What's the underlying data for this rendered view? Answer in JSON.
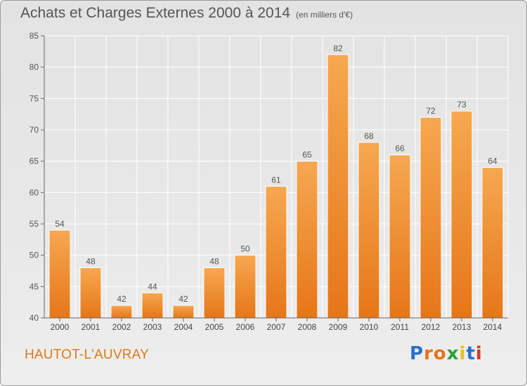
{
  "title": "Achats et Charges Externes 2000 à 2014",
  "subtitle": "(en milliers d'€)",
  "city": "HAUTOT-L'AUVRAY",
  "logo": {
    "letters": [
      "P",
      "r",
      "o",
      "x",
      "i",
      "t",
      "i"
    ],
    "colors": [
      "#2a6fc9",
      "#e8731a",
      "#e8731a",
      "#2e9e3a",
      "#e6c21a",
      "#2a6fc9",
      "#d43a2a"
    ]
  },
  "colors": {
    "bar": "#f08c28",
    "bar_light": "#f6a850",
    "axis": "#555555",
    "grid": "#ffffff",
    "city": "#e07818"
  },
  "chart_data": {
    "type": "bar",
    "categories": [
      "2000",
      "2001",
      "2002",
      "2003",
      "2004",
      "2005",
      "2006",
      "2007",
      "2008",
      "2009",
      "2010",
      "2011",
      "2012",
      "2013",
      "2014"
    ],
    "values": [
      54,
      48,
      42,
      44,
      42,
      48,
      50,
      61,
      65,
      82,
      68,
      66,
      72,
      73,
      64
    ],
    "ylim": [
      40,
      85
    ],
    "yticks": [
      40,
      45,
      50,
      55,
      60,
      65,
      70,
      75,
      80,
      85
    ],
    "grid": true,
    "data_labels": true
  }
}
